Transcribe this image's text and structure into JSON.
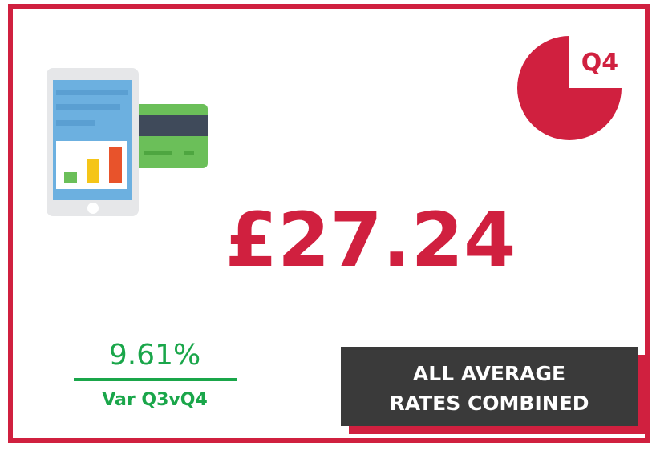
{
  "badge": {
    "label": "Q4"
  },
  "headline": {
    "value_text": "£27.24"
  },
  "variance": {
    "value_text": "9.61%",
    "label": "Var Q3vQ4"
  },
  "description": {
    "lines": [
      "ALL AVERAGE",
      "RATES COMBINED"
    ]
  }
}
